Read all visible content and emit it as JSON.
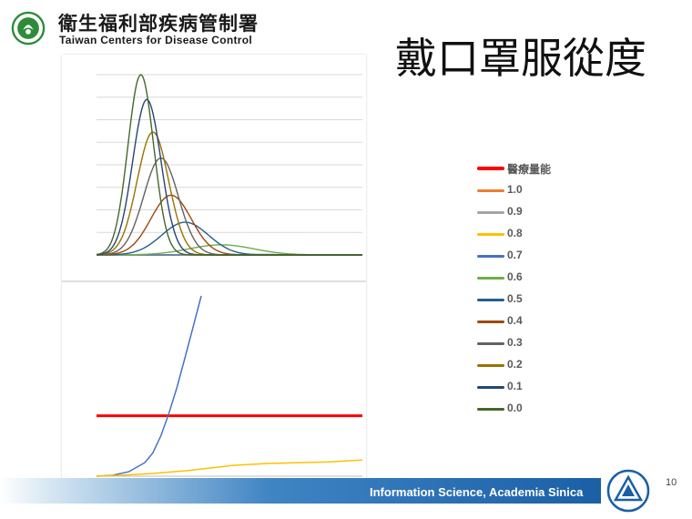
{
  "header": {
    "org_name_cn": "衛生福利部疾病管制署",
    "org_name_en": "Taiwan Centers for Disease Control"
  },
  "slide": {
    "title": "戴口罩服從度",
    "footer_text": "Information Science, Academia Sinica",
    "page_number": "10"
  },
  "colors": {
    "capacity": "#ff0000",
    "s10": "#ed7d31",
    "s09": "#a5a5a5",
    "s08": "#ffc000",
    "s07": "#4472c4",
    "s06": "#70ad47",
    "s05": "#255e91",
    "s04": "#9e480e",
    "s03": "#636363",
    "s02": "#997300",
    "s01": "#264478",
    "s00": "#43682b"
  },
  "legend": [
    {
      "label": "醫療量能",
      "color": "#ff0000"
    },
    {
      "label": "1.0",
      "color": "#ed7d31"
    },
    {
      "label": "0.9",
      "color": "#a5a5a5"
    },
    {
      "label": "0.8",
      "color": "#ffc000"
    },
    {
      "label": "0.7",
      "color": "#4472c4"
    },
    {
      "label": "0.6",
      "color": "#70ad47"
    },
    {
      "label": "0.5",
      "color": "#255e91"
    },
    {
      "label": "0.4",
      "color": "#9e480e"
    },
    {
      "label": "0.3",
      "color": "#636363"
    },
    {
      "label": "0.2",
      "color": "#997300"
    },
    {
      "label": "0.1",
      "color": "#264478"
    },
    {
      "label": "0.0",
      "color": "#43682b"
    }
  ],
  "chart_data": [
    {
      "type": "line",
      "grid": true,
      "ylim": [
        0,
        8
      ],
      "xlim": [
        0,
        66
      ],
      "series": [
        {
          "name": "0.0",
          "color": "#43682b",
          "peak_x": 11,
          "peak_y": 8.0,
          "sigma": 3.2
        },
        {
          "name": "0.1",
          "color": "#264478",
          "peak_x": 12.5,
          "peak_y": 6.9,
          "sigma": 3.5
        },
        {
          "name": "0.2",
          "color": "#997300",
          "peak_x": 14,
          "peak_y": 5.45,
          "sigma": 3.9
        },
        {
          "name": "0.3",
          "color": "#636363",
          "peak_x": 16,
          "peak_y": 4.3,
          "sigma": 4.3
        },
        {
          "name": "0.4",
          "color": "#9e480e",
          "peak_x": 18.5,
          "peak_y": 2.65,
          "sigma": 5.0
        },
        {
          "name": "0.5",
          "color": "#255e91",
          "peak_x": 22,
          "peak_y": 1.45,
          "sigma": 5.8
        },
        {
          "name": "0.6",
          "color": "#70ad47",
          "peak_x": 31,
          "peak_y": 0.45,
          "sigma": 8.0
        },
        {
          "name": "0.7",
          "color": "#4472c4",
          "peak_x": 40,
          "peak_y": 0.02,
          "sigma": 9.0
        },
        {
          "name": "0.8",
          "color": "#ffc000",
          "peak_x": 45,
          "peak_y": 0.0,
          "sigma": 9.0
        },
        {
          "name": "0.9",
          "color": "#a5a5a5",
          "peak_x": 45,
          "peak_y": 0.0,
          "sigma": 9.0
        },
        {
          "name": "1.0",
          "color": "#ed7d31",
          "peak_x": 45,
          "peak_y": 0.0,
          "sigma": 9.0
        }
      ]
    },
    {
      "type": "line",
      "grid": false,
      "ylim": [
        0,
        2
      ],
      "xlim": [
        0,
        66
      ],
      "capacity": 0.67,
      "series": [
        {
          "name": "0.7",
          "color": "#4472c4",
          "x": [
            0,
            4,
            8,
            12,
            14,
            16,
            18,
            20,
            22,
            24,
            26
          ],
          "y": [
            0,
            0.01,
            0.05,
            0.15,
            0.26,
            0.45,
            0.7,
            0.99,
            1.32,
            1.66,
            2.0
          ]
        },
        {
          "name": "0.8",
          "color": "#ffc000",
          "x": [
            0,
            6,
            10,
            14,
            18,
            22,
            26,
            30,
            34,
            38,
            42,
            46,
            50,
            54,
            58,
            62,
            66
          ],
          "y": [
            0,
            0.01,
            0.02,
            0.03,
            0.045,
            0.06,
            0.08,
            0.1,
            0.12,
            0.13,
            0.14,
            0.145,
            0.15,
            0.155,
            0.16,
            0.17,
            0.18
          ]
        }
      ]
    }
  ]
}
